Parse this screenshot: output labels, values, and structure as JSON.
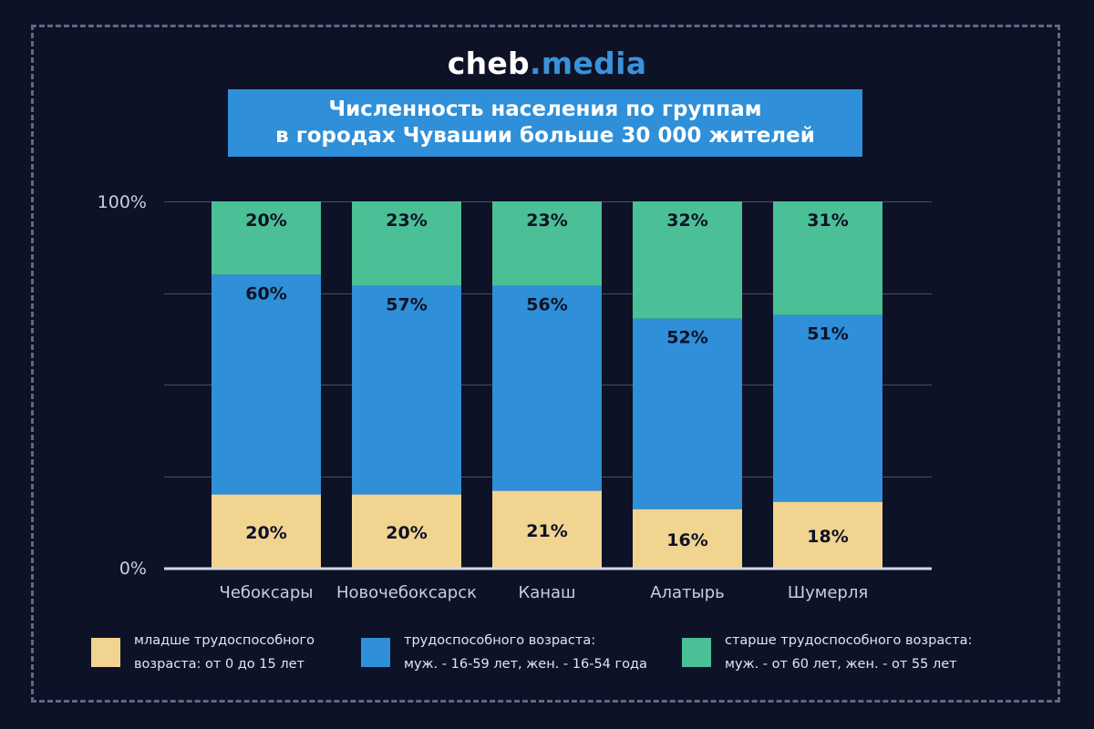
{
  "header": {
    "logo_main": "cheb",
    "logo_accent": ".media",
    "title_line1": "Численность населения по группам",
    "title_line2": "в городах Чувашии больше 30 000 жителей"
  },
  "colors": {
    "background": "#0d1226",
    "young": "#f1d48f",
    "working": "#2f8fd8",
    "elder": "#4bbf95",
    "axis_text": "#c9cfdc",
    "grid": "#4a5060"
  },
  "legend": [
    {
      "line1": "младше трудоспособного",
      "line2": "возраста: от 0 до 15 лет",
      "color": "#f1d48f"
    },
    {
      "line1": "трудоспособного возраста:",
      "line2": "муж. - 16-59 лет, жен. - 16-54 года",
      "color": "#2f8fd8"
    },
    {
      "line1": "старше трудоспособного возраста:",
      "line2": "муж. - от 60 лет, жен. - от 55 лет",
      "color": "#4bbf95"
    }
  ],
  "chart_data": {
    "type": "bar",
    "stacked": true,
    "categories": [
      "Чебоксары",
      "Новочебоксарск",
      "Канаш",
      "Алатырь",
      "Шумерля"
    ],
    "series": [
      {
        "name": "младше трудоспособного возраста",
        "color": "#f1d48f",
        "values": [
          20,
          20,
          21,
          16,
          18
        ],
        "labels": [
          "20%",
          "20%",
          "21%",
          "16%",
          "18%"
        ]
      },
      {
        "name": "трудоспособного возраста",
        "color": "#2f8fd8",
        "values": [
          60,
          57,
          56,
          52,
          51
        ],
        "labels": [
          "60%",
          "57%",
          "56%",
          "52%",
          "51%"
        ]
      },
      {
        "name": "старше трудоспособного возраста",
        "color": "#4bbf95",
        "values": [
          20,
          23,
          23,
          32,
          31
        ],
        "labels": [
          "20%",
          "23%",
          "23%",
          "32%",
          "31%"
        ]
      }
    ],
    "ylim": [
      0,
      100
    ],
    "y_tick_labels": [
      {
        "value": 0,
        "label": "0%"
      },
      {
        "value": 100,
        "label": "100%"
      }
    ],
    "gridlines": [
      0,
      25,
      50,
      75,
      100
    ],
    "title": "Численность населения по группам в городах Чувашии больше 30 000 жителей",
    "xlabel": "",
    "ylabel": ""
  }
}
